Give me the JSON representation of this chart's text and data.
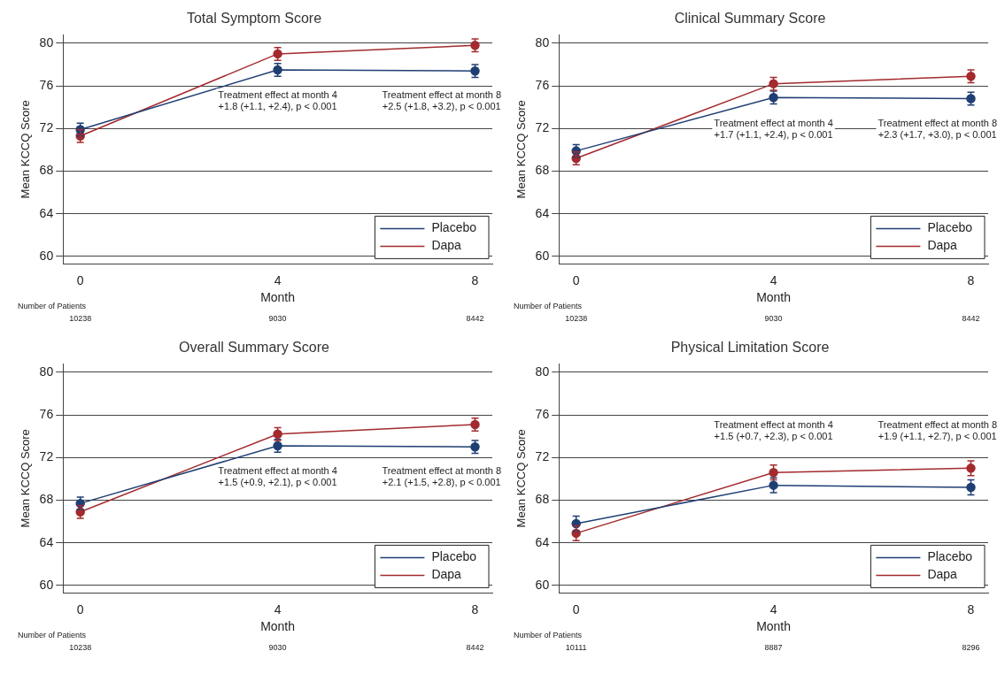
{
  "chart_data": [
    {
      "type": "line",
      "title": "Total Symptom Score",
      "xlabel": "Month",
      "ylabel": "Mean KCCQ Score",
      "x": [
        0,
        4,
        8
      ],
      "xlim": [
        -0.35,
        8.35
      ],
      "xticks": [
        0,
        4,
        8
      ],
      "ylim": [
        59.3,
        80.8
      ],
      "yticks": [
        60,
        64,
        68,
        72,
        76,
        80
      ],
      "grid": "y",
      "legend": "bottom right",
      "marker": "circle",
      "line_style": "solid",
      "series": [
        {
          "name": "Placebo",
          "color": "#1f3f73",
          "values": [
            71.9,
            77.5,
            77.4
          ],
          "errors": [
            0.6,
            0.6,
            0.6
          ]
        },
        {
          "name": "Dapa",
          "color": "#a32a2e",
          "values": [
            71.3,
            79.0,
            79.8
          ],
          "errors": [
            0.6,
            0.6,
            0.6
          ]
        }
      ],
      "annotations": [
        "Treatment effect at month 4\n+1.8 (+1.1, +2.4), p < 0.001",
        "Treatment effect at month 8\n+2.5 (+1.8, +3.2), p < 0.001",
        "Number of Patients",
        "10238",
        "9030",
        "8442"
      ]
    },
    {
      "type": "line",
      "title": "Clinical Summary Score",
      "xlabel": "Month",
      "ylabel": "Mean KCCQ Score",
      "x": [
        0,
        4,
        8
      ],
      "xlim": [
        -0.35,
        8.35
      ],
      "xticks": [
        0,
        4,
        8
      ],
      "ylim": [
        59.3,
        80.8
      ],
      "yticks": [
        60,
        64,
        68,
        72,
        76,
        80
      ],
      "grid": "y",
      "legend": "bottom right",
      "marker": "circle",
      "line_style": "solid",
      "series": [
        {
          "name": "Placebo",
          "color": "#1f3f73",
          "values": [
            69.9,
            74.9,
            74.8
          ],
          "errors": [
            0.6,
            0.6,
            0.6
          ]
        },
        {
          "name": "Dapa",
          "color": "#a32a2e",
          "values": [
            69.2,
            76.2,
            76.9
          ],
          "errors": [
            0.6,
            0.6,
            0.6
          ]
        }
      ],
      "annotations": [
        "Treatment effect at month 4\n+1.7 (+1.1, +2.4), p < 0.001",
        "Treatment effect at month 8\n+2.3 (+1.7, +3.0), p < 0.001",
        "Number of Patients",
        "10238",
        "9030",
        "8442"
      ]
    },
    {
      "type": "line",
      "title": "Overall Summary Score",
      "xlabel": "Month",
      "ylabel": "Mean KCCQ Score",
      "x": [
        0,
        4,
        8
      ],
      "xlim": [
        -0.35,
        8.35
      ],
      "xticks": [
        0,
        4,
        8
      ],
      "ylim": [
        59.3,
        80.8
      ],
      "yticks": [
        60,
        64,
        68,
        72,
        76,
        80
      ],
      "grid": "y",
      "legend": "bottom right",
      "marker": "circle",
      "line_style": "solid",
      "series": [
        {
          "name": "Placebo",
          "color": "#1f3f73",
          "values": [
            67.7,
            73.1,
            73.0
          ],
          "errors": [
            0.6,
            0.6,
            0.6
          ]
        },
        {
          "name": "Dapa",
          "color": "#a32a2e",
          "values": [
            66.9,
            74.2,
            75.1
          ],
          "errors": [
            0.6,
            0.6,
            0.6
          ]
        }
      ],
      "annotations": [
        "Treatment effect at month 4\n+1.5 (+0.9, +2.1), p < 0.001",
        "Treatment effect at month 8\n+2.1 (+1.5, +2.8), p < 0.001",
        "Number of Patients",
        "10238",
        "9030",
        "8442"
      ]
    },
    {
      "type": "line",
      "title": "Physical Limitation Score",
      "xlabel": "Month",
      "ylabel": "Mean KCCQ Score",
      "x": [
        0,
        4,
        8
      ],
      "xlim": [
        -0.35,
        8.35
      ],
      "xticks": [
        0,
        4,
        8
      ],
      "ylim": [
        59.3,
        80.8
      ],
      "yticks": [
        60,
        64,
        68,
        72,
        76,
        80
      ],
      "grid": "y",
      "legend": "bottom right",
      "marker": "circle",
      "line_style": "solid",
      "series": [
        {
          "name": "Placebo",
          "color": "#1f3f73",
          "values": [
            65.8,
            69.4,
            69.2
          ],
          "errors": [
            0.7,
            0.7,
            0.7
          ]
        },
        {
          "name": "Dapa",
          "color": "#a32a2e",
          "values": [
            64.9,
            70.6,
            71.0
          ],
          "errors": [
            0.7,
            0.7,
            0.7
          ]
        }
      ],
      "annotations": [
        "Treatment effect at month 4\n+1.5 (+0.7, +2.3), p < 0.001",
        "Treatment effect at month 8\n+1.9 (+1.1, +2.7), p < 0.001",
        "Number of Patients",
        "10111",
        "8887",
        "8296"
      ]
    }
  ]
}
